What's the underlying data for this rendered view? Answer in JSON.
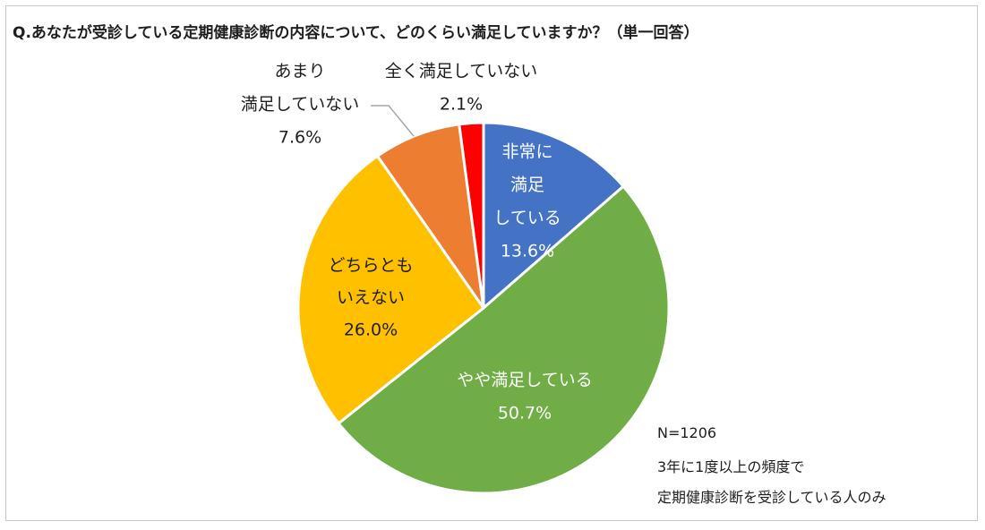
{
  "chart_data": {
    "type": "pie",
    "title": "Q.あなたが受診している定期健康診断の内容について、どのくらい満足していますか？（単一回答）",
    "start_angle_deg": 0,
    "direction": "clockwise",
    "slices": [
      {
        "label_lines": [
          "非常に",
          "満足",
          "している"
        ],
        "label": "非常に満足している",
        "value": 13.6,
        "value_text": "13.6%",
        "color": "#4472C4"
      },
      {
        "label_lines": [
          "やや満足している"
        ],
        "label": "やや満足している",
        "value": 50.7,
        "value_text": "50.7%",
        "color": "#70AD47"
      },
      {
        "label_lines": [
          "どちらとも",
          "いえない"
        ],
        "label": "どちらともいえない",
        "value": 26.0,
        "value_text": "26.0%",
        "color": "#FFC000"
      },
      {
        "label_lines": [
          "あまり",
          "満足していない"
        ],
        "label": "あまり満足していない",
        "value": 7.6,
        "value_text": "7.6%",
        "color": "#ED7D31"
      },
      {
        "label_lines": [
          "全く満足していない"
        ],
        "label": "全く満足していない",
        "value": 2.1,
        "value_text": "2.1%",
        "color": "#FF0000"
      }
    ],
    "notes": [
      "N=1206",
      "3年に1度以上の頻度で",
      "定期健康診断を受診している人のみ"
    ]
  }
}
